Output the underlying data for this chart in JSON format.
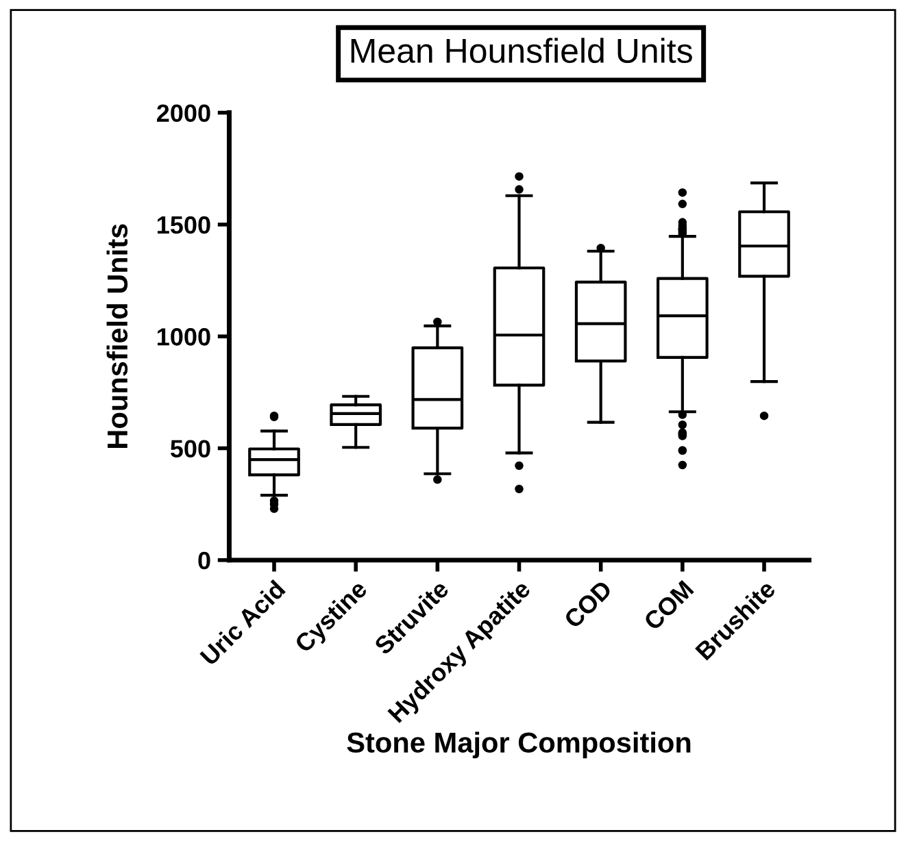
{
  "chart_data": {
    "type": "box",
    "title": "Mean Hounsfield Units",
    "xlabel": "Stone Major Composition",
    "ylabel": "Hounsfield Units",
    "categories": [
      "Uric Acid",
      "Cystine",
      "Struvite",
      "Hydroxy Apatite",
      "COD",
      "COM",
      "Brushite"
    ],
    "boxes": [
      {
        "low": 290,
        "q1": 381,
        "median": 449,
        "q3": 497,
        "high": 577,
        "outliers": [
          645,
          640,
          265,
          250,
          230
        ]
      },
      {
        "low": 504,
        "q1": 606,
        "median": 655,
        "q3": 694,
        "high": 732
      },
      {
        "low": 386,
        "q1": 590,
        "median": 718,
        "q3": 949,
        "high": 1047,
        "outliers": [
          1065,
          360
        ]
      },
      {
        "low": 479,
        "q1": 782,
        "median": 1006,
        "q3": 1306,
        "high": 1629,
        "outliers": [
          1715,
          1657,
          422,
          318
        ]
      },
      {
        "low": 616,
        "q1": 890,
        "median": 1057,
        "q3": 1243,
        "high": 1381,
        "outliers": [
          1395
        ]
      },
      {
        "low": 663,
        "q1": 906,
        "median": 1092,
        "q3": 1259,
        "high": 1447,
        "outliers": [
          1643,
          1592,
          1510,
          1495,
          1485,
          1480,
          1475,
          1470,
          1460,
          650,
          605,
          570,
          560,
          555,
          565,
          490,
          490,
          425
        ]
      },
      {
        "low": 798,
        "q1": 1269,
        "median": 1404,
        "q3": 1557,
        "high": 1686,
        "outliers": [
          645
        ]
      }
    ],
    "color": "#000000",
    "ylim": [
      0,
      2000
    ],
    "yticks": [
      0,
      500,
      1000,
      1500,
      2000
    ],
    "grid": false
  }
}
